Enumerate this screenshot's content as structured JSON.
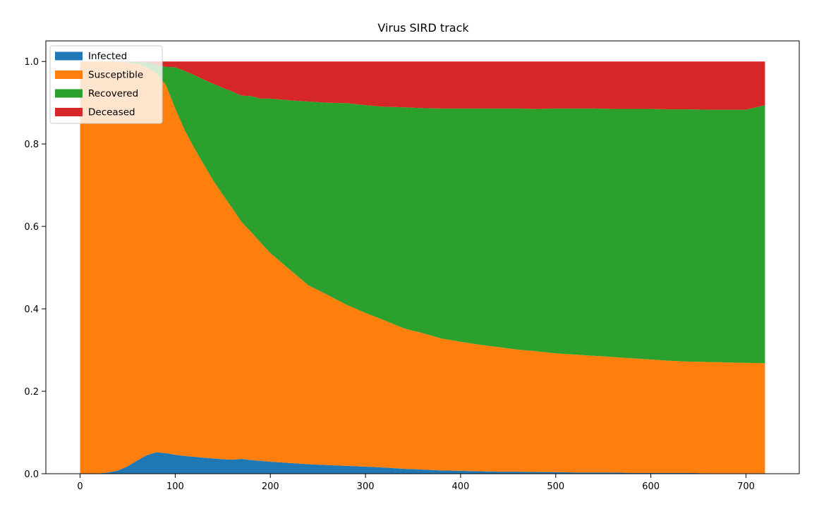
{
  "chart_data": {
    "type": "area",
    "stacked": true,
    "title": "Virus SIRD track",
    "xlabel": "",
    "ylabel": "",
    "xlim": [
      -36,
      756
    ],
    "ylim": [
      0.0,
      1.05
    ],
    "xticks": [
      0,
      100,
      200,
      300,
      400,
      500,
      600,
      700
    ],
    "yticks": [
      0.0,
      0.2,
      0.4,
      0.6,
      0.8,
      1.0
    ],
    "x_tick_labels": [
      "0",
      "100",
      "200",
      "300",
      "400",
      "500",
      "600",
      "700"
    ],
    "y_tick_labels": [
      "0.0",
      "0.2",
      "0.4",
      "0.6",
      "0.8",
      "1.0"
    ],
    "grid": false,
    "legend_position": "top-left",
    "x": [
      0,
      10,
      20,
      30,
      40,
      50,
      60,
      70,
      80,
      90,
      100,
      110,
      120,
      130,
      140,
      150,
      160,
      170,
      180,
      190,
      200,
      220,
      240,
      260,
      280,
      300,
      320,
      340,
      360,
      380,
      400,
      420,
      440,
      460,
      480,
      500,
      520,
      540,
      560,
      580,
      600,
      620,
      640,
      660,
      680,
      700,
      720
    ],
    "series": [
      {
        "name": "Infected",
        "color": "#1f77b4",
        "values": [
          0.0,
          0.0,
          0.001,
          0.003,
          0.008,
          0.018,
          0.032,
          0.045,
          0.052,
          0.05,
          0.046,
          0.043,
          0.041,
          0.039,
          0.037,
          0.035,
          0.034,
          0.036,
          0.033,
          0.031,
          0.029,
          0.026,
          0.023,
          0.021,
          0.019,
          0.017,
          0.015,
          0.012,
          0.01,
          0.008,
          0.007,
          0.006,
          0.005,
          0.005,
          0.004,
          0.004,
          0.003,
          0.003,
          0.003,
          0.002,
          0.002,
          0.002,
          0.002,
          0.001,
          0.001,
          0.001,
          0.001
        ]
      },
      {
        "name": "Susceptible",
        "color": "#ff7f0e",
        "values": [
          1.0,
          1.0,
          0.999,
          0.997,
          0.991,
          0.98,
          0.962,
          0.942,
          0.92,
          0.894,
          0.84,
          0.79,
          0.749,
          0.711,
          0.674,
          0.642,
          0.61,
          0.574,
          0.553,
          0.529,
          0.506,
          0.47,
          0.434,
          0.413,
          0.391,
          0.373,
          0.357,
          0.341,
          0.331,
          0.32,
          0.313,
          0.307,
          0.302,
          0.296,
          0.293,
          0.288,
          0.286,
          0.283,
          0.28,
          0.278,
          0.275,
          0.272,
          0.27,
          0.27,
          0.269,
          0.268,
          0.267
        ]
      },
      {
        "name": "Recovered",
        "color": "#2ca02c",
        "values": [
          0.0,
          0.0,
          0.0,
          0.0,
          0.001,
          0.002,
          0.005,
          0.011,
          0.02,
          0.043,
          0.1,
          0.144,
          0.177,
          0.206,
          0.235,
          0.259,
          0.283,
          0.307,
          0.33,
          0.35,
          0.375,
          0.41,
          0.446,
          0.466,
          0.489,
          0.504,
          0.518,
          0.536,
          0.546,
          0.558,
          0.566,
          0.573,
          0.579,
          0.585,
          0.588,
          0.594,
          0.597,
          0.6,
          0.602,
          0.605,
          0.608,
          0.61,
          0.612,
          0.612,
          0.613,
          0.614,
          0.626
        ]
      },
      {
        "name": "Deceased",
        "color": "#d62728",
        "values": [
          0.0,
          0.0,
          0.0,
          0.0,
          0.0,
          0.0,
          0.001,
          0.002,
          0.008,
          0.013,
          0.014,
          0.023,
          0.033,
          0.044,
          0.054,
          0.064,
          0.073,
          0.083,
          0.084,
          0.09,
          0.09,
          0.094,
          0.097,
          0.1,
          0.101,
          0.106,
          0.11,
          0.111,
          0.113,
          0.114,
          0.114,
          0.114,
          0.114,
          0.114,
          0.115,
          0.114,
          0.114,
          0.114,
          0.115,
          0.115,
          0.115,
          0.116,
          0.116,
          0.117,
          0.117,
          0.117,
          0.106
        ]
      }
    ]
  }
}
